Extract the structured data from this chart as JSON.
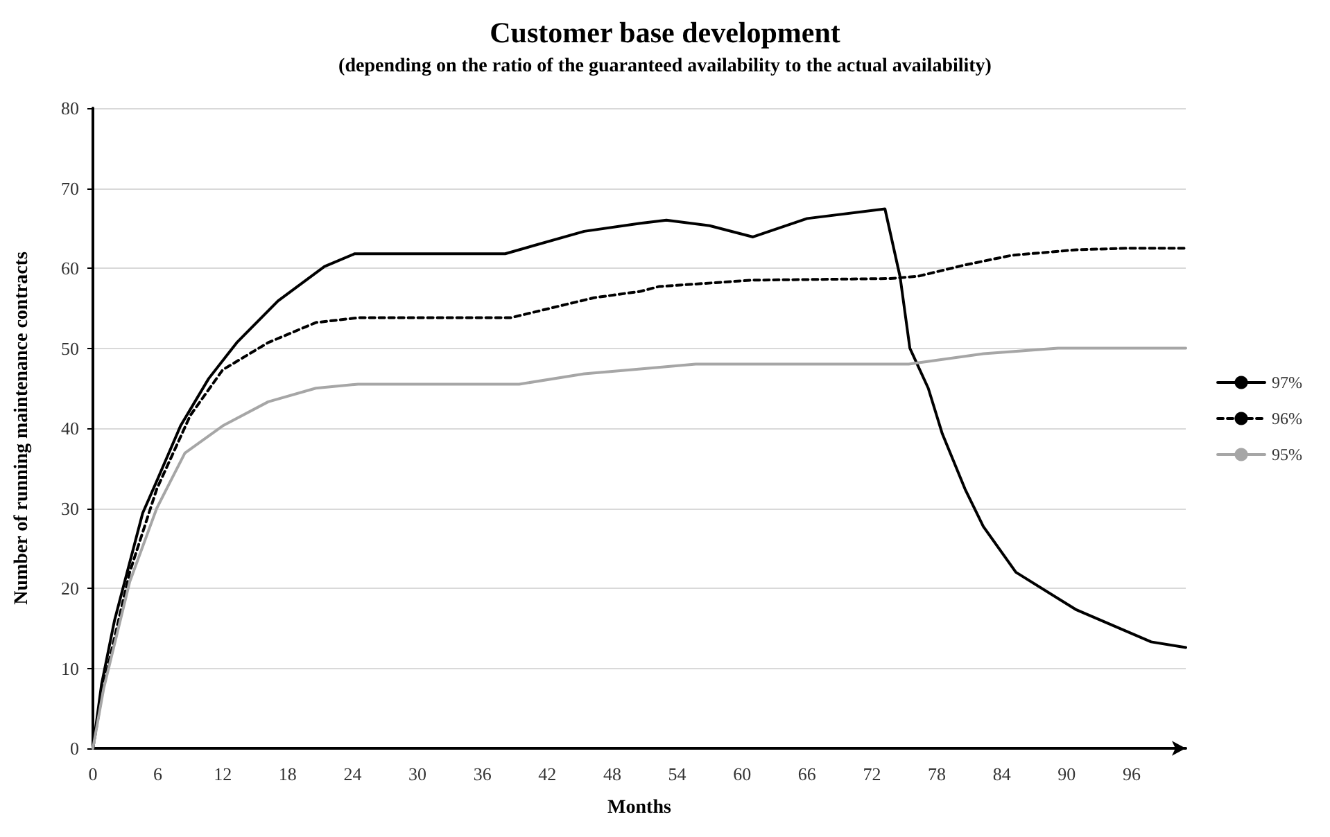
{
  "chart_data": {
    "type": "line",
    "title": "Customer base development",
    "subtitle": "(depending on the ratio of the guaranteed availability to the actual availability)",
    "xlabel": "Months",
    "ylabel": "Number of running maintenance contracts",
    "xlim": [
      0,
      101
    ],
    "xticks": [
      0,
      6,
      12,
      18,
      24,
      30,
      36,
      42,
      48,
      54,
      60,
      66,
      72,
      78,
      84,
      90,
      96
    ],
    "ylim": [
      0,
      80
    ],
    "yticks": [
      0,
      10,
      20,
      30,
      40,
      50,
      60,
      70,
      80
    ],
    "grid": "y",
    "legend": "right",
    "marker": "none",
    "series": [
      {
        "name": "97%",
        "color": "#000000",
        "line_style": "solid",
        "x": [
          0,
          0.8,
          2,
          4.6,
          5.9,
          8.1,
          10.7,
          13.3,
          17.1,
          21.4,
          24.2,
          38.1,
          45.4,
          50.6,
          53,
          57,
          61,
          66,
          73.2,
          74.6,
          75.5,
          77.2,
          78.5,
          80.6,
          82.3,
          85.3,
          90.9,
          97.8,
          101
        ],
        "values": [
          0,
          8,
          16,
          29.4,
          33.4,
          40.3,
          46.2,
          50.7,
          55.9,
          60.2,
          61.8,
          61.8,
          64.6,
          65.6,
          66,
          65.3,
          63.9,
          66.2,
          67.4,
          58.9,
          50,
          45,
          39.3,
          32.4,
          27.7,
          22,
          17.3,
          13.3,
          12.6
        ]
      },
      {
        "name": "96%",
        "color": "#000000",
        "line_style": "dashed",
        "x": [
          0,
          1,
          3.4,
          5.9,
          9,
          12,
          16.2,
          20.6,
          24.5,
          38.6,
          46.3,
          50.6,
          52.3,
          60.9,
          73.7,
          76.3,
          80.6,
          84.9,
          90.9,
          96,
          101
        ],
        "values": [
          0,
          8,
          22,
          32.4,
          41.6,
          47.3,
          50.7,
          53.2,
          53.8,
          53.8,
          56.3,
          57.1,
          57.7,
          58.5,
          58.7,
          59,
          60.4,
          61.6,
          62.3,
          62.5,
          62.5
        ]
      },
      {
        "name": "95%",
        "color": "#a6a6a6",
        "line_style": "solid",
        "x": [
          0,
          1,
          3.4,
          5.9,
          8.5,
          12,
          16.2,
          20.6,
          24.5,
          39.4,
          45.4,
          50.6,
          55.7,
          75.4,
          82.3,
          89.2,
          101
        ],
        "values": [
          0,
          7.5,
          20.8,
          30,
          36.9,
          40.3,
          43.3,
          45,
          45.5,
          45.5,
          46.8,
          47.4,
          48,
          48,
          49.3,
          50,
          50
        ]
      }
    ]
  }
}
